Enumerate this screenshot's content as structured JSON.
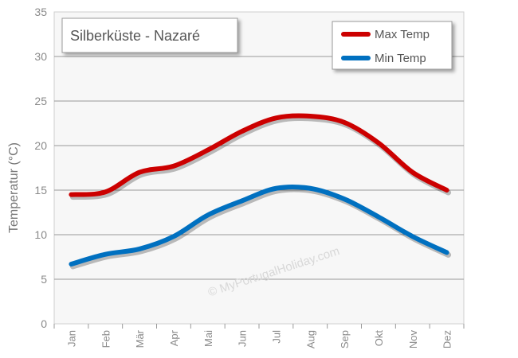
{
  "chart_data": {
    "type": "line",
    "title": "Silberküste -  Nazaré",
    "ylabel": "Temperatur (°C)",
    "xlabel": "",
    "watermark": "© MyPortugalHoliday.com",
    "categories": [
      "Jan",
      "Feb",
      "Mär",
      "Apr",
      "Mai",
      "Jun",
      "Jul",
      "Aug",
      "Sep",
      "Okt",
      "Nov",
      "Dez"
    ],
    "ylim": [
      0,
      35
    ],
    "yticks": [
      0,
      5,
      10,
      15,
      20,
      25,
      30,
      35
    ],
    "grid": true,
    "legend": "top-right",
    "series": [
      {
        "name": "Max Temp",
        "color": "#cc0000",
        "values": [
          14.5,
          14.8,
          17.0,
          17.7,
          19.5,
          21.6,
          23.1,
          23.3,
          22.6,
          20.3,
          17.0,
          15.0
        ]
      },
      {
        "name": "Min Temp",
        "color": "#0070c0",
        "values": [
          6.7,
          7.8,
          8.4,
          9.8,
          12.2,
          13.8,
          15.2,
          15.2,
          14.0,
          12.0,
          9.8,
          8.0
        ]
      }
    ]
  }
}
